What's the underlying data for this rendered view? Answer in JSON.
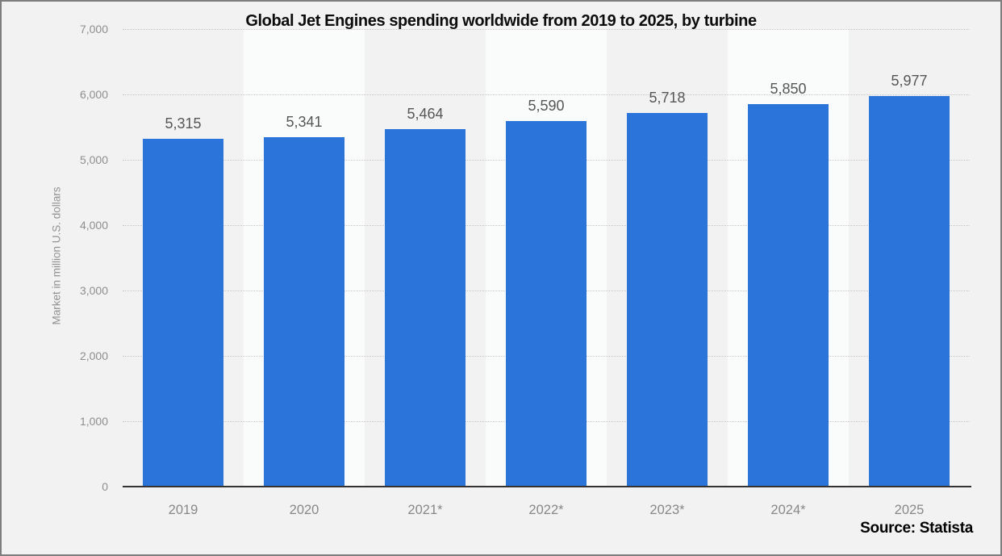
{
  "title": "Global Jet Engines spending worldwide from 2019 to 2025, by turbine",
  "source": "Source: Statista",
  "y_axis_title": "Market in million U.S. dollars",
  "chart_data": {
    "type": "bar",
    "title": "Global Jet Engines spending worldwide from 2019 to 2025, by turbine",
    "categories": [
      "2019",
      "2020",
      "2021*",
      "2022*",
      "2023*",
      "2024*",
      "2025"
    ],
    "values": [
      5315,
      5341,
      5464,
      5590,
      5718,
      5850,
      5977
    ],
    "value_labels": [
      "5,315",
      "5,341",
      "5,464",
      "5,590",
      "5,718",
      "5,850",
      "5,977"
    ],
    "xlabel": "",
    "ylabel": "Market in million U.S. dollars",
    "ylim": [
      0,
      7000
    ],
    "ytick_step": 1000,
    "ytick_labels": [
      "0",
      "1,000",
      "2,000",
      "3,000",
      "4,000",
      "5,000",
      "6,000",
      "7,000"
    ],
    "grid": "horizontal dotted gridlines at each 1,000; alternating vertical category background bands",
    "legend": "none",
    "colors": {
      "bar": "#2b74d9",
      "band_odd": "#f2f2f2",
      "band_even": "#fafbfb",
      "grid_line": "#c7c7c7",
      "axis_line": "#333333",
      "value_label": "#565656",
      "tick_label": "#8e8e8e",
      "background": "#f2f2f2",
      "frame_border": "#7e7e7e"
    }
  }
}
